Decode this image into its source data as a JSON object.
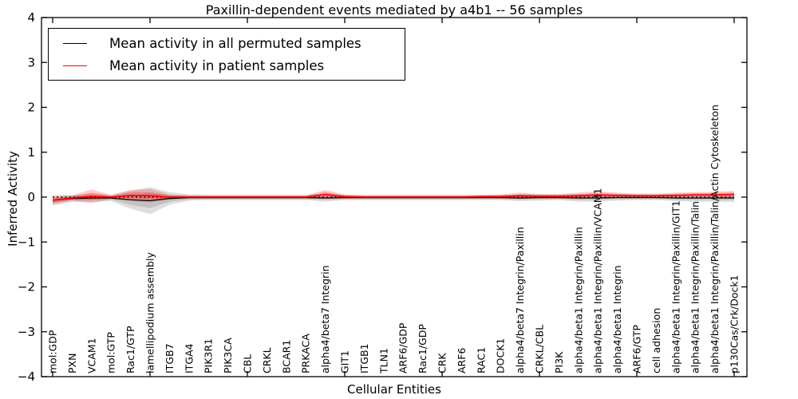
{
  "chart_data": {
    "type": "line",
    "title": "Paxillin-dependent events mediated by a4b1 -- 56 samples",
    "xlabel": "Cellular Entities",
    "ylabel": "Inferred Activity",
    "ylim": [
      -4,
      4
    ],
    "yticks": [
      4,
      3,
      2,
      1,
      0,
      -1,
      -2,
      -3,
      -4
    ],
    "grid": false,
    "legend_position": "upper left",
    "zero_reference_line": {
      "value": 0,
      "style": "dotted",
      "color": "#000000"
    },
    "categories": [
      "mol:GDP",
      "PXN",
      "VCAM1",
      "mol:GTP",
      "Rac1/GTP",
      "lamellipodium assembly",
      "ITGB7",
      "ITGA4",
      "PIK3R1",
      "PIK3CA",
      "CBL",
      "CRKL",
      "BCAR1",
      "PRKACA",
      "alpha4/beta7 Integrin",
      "GIT1",
      "ITGB1",
      "TLN1",
      "ARF6/GDP",
      "Rac1/GDP",
      "CRK",
      "ARF6",
      "RAC1",
      "DOCK1",
      "alpha4/beta7 Integrin/Paxillin",
      "CRKL/CBL",
      "PI3K",
      "alpha4/beta1 Integrin/Paxillin",
      "alpha4/beta1 Integrin/Paxillin/VCAM1",
      "alpha4/beta1 Integrin",
      "ARF6/GTP",
      "cell adhesion",
      "alpha4/beta1 Integrin/Paxillin/GIT1",
      "alpha4/beta1 Integrin/Paxillin/Talin",
      "alpha4/beta1 Integrin/Paxillin/Talin/Actin Cytoskeleton",
      "p130Cas/Crk/Dock1"
    ],
    "legend": [
      {
        "label": "Mean activity in all permuted samples",
        "color": "#000000"
      },
      {
        "label": "Mean activity in patient samples",
        "color": "#ff0000"
      }
    ],
    "series": [
      {
        "name": "Mean activity in all permuted samples",
        "color": "#000000",
        "mean": [
          -0.07,
          -0.03,
          -0.02,
          -0.02,
          -0.06,
          -0.08,
          -0.03,
          -0.01,
          -0.01,
          -0.01,
          -0.01,
          -0.01,
          -0.01,
          -0.01,
          -0.02,
          -0.01,
          -0.01,
          -0.01,
          -0.01,
          -0.01,
          -0.01,
          -0.01,
          -0.01,
          -0.01,
          -0.02,
          -0.01,
          -0.01,
          -0.02,
          -0.02,
          -0.01,
          -0.01,
          -0.01,
          -0.02,
          -0.02,
          -0.02,
          -0.02
        ],
        "std": [
          0.12,
          0.08,
          0.09,
          0.07,
          0.2,
          0.3,
          0.14,
          0.07,
          0.06,
          0.06,
          0.06,
          0.06,
          0.06,
          0.06,
          0.08,
          0.06,
          0.06,
          0.06,
          0.06,
          0.06,
          0.06,
          0.06,
          0.06,
          0.06,
          0.07,
          0.07,
          0.06,
          0.08,
          0.08,
          0.07,
          0.06,
          0.06,
          0.07,
          0.08,
          0.08,
          0.09
        ]
      },
      {
        "name": "Mean activity in patient samples",
        "color": "#ff0000",
        "mean": [
          -0.07,
          -0.02,
          0.02,
          0.0,
          0.04,
          0.03,
          0.0,
          0.0,
          0.0,
          0.0,
          0.0,
          0.0,
          0.0,
          0.0,
          0.06,
          0.01,
          0.0,
          0.0,
          0.0,
          0.0,
          0.0,
          0.0,
          0.01,
          0.01,
          0.03,
          0.02,
          0.02,
          0.03,
          0.05,
          0.04,
          0.03,
          0.03,
          0.04,
          0.05,
          0.05,
          0.06
        ],
        "std": [
          0.08,
          0.06,
          0.15,
          0.05,
          0.12,
          0.15,
          0.06,
          0.04,
          0.04,
          0.04,
          0.04,
          0.04,
          0.04,
          0.04,
          0.1,
          0.05,
          0.04,
          0.04,
          0.04,
          0.04,
          0.04,
          0.04,
          0.04,
          0.05,
          0.07,
          0.05,
          0.05,
          0.07,
          0.08,
          0.06,
          0.05,
          0.05,
          0.06,
          0.06,
          0.07,
          0.08
        ]
      }
    ],
    "style": {
      "band_gray": "rgba(0,0,0,0.13)",
      "band_gray_inner": "rgba(0,0,0,0.12)",
      "band_red": "rgba(255,0,0,0.20)",
      "band_red_inner": "rgba(255,0,0,0.25)",
      "frame_color": "#000000"
    }
  }
}
